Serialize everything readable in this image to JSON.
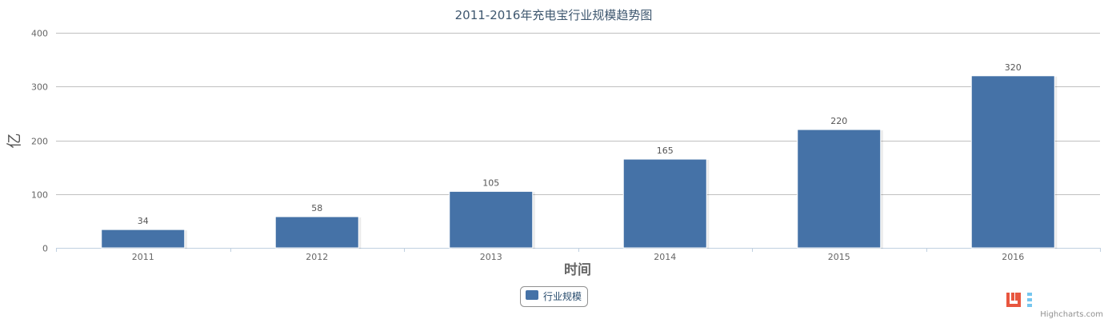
{
  "chart_data": {
    "type": "bar",
    "title": "2011-2016年充电宝行业规模趋势图",
    "xlabel": "时间",
    "ylabel": "亿",
    "categories": [
      "2011",
      "2012",
      "2013",
      "2014",
      "2015",
      "2016"
    ],
    "series": [
      {
        "name": "行业规模",
        "values": [
          34,
          58,
          105,
          165,
          220,
          320
        ],
        "color": "#4572a7"
      }
    ],
    "ylim": [
      0,
      400
    ],
    "yticks": [
      "0",
      "100",
      "200",
      "300",
      "400"
    ],
    "grid": true,
    "data_labels": true,
    "legend": "bottom-center"
  },
  "credits": "Highcharts.com"
}
